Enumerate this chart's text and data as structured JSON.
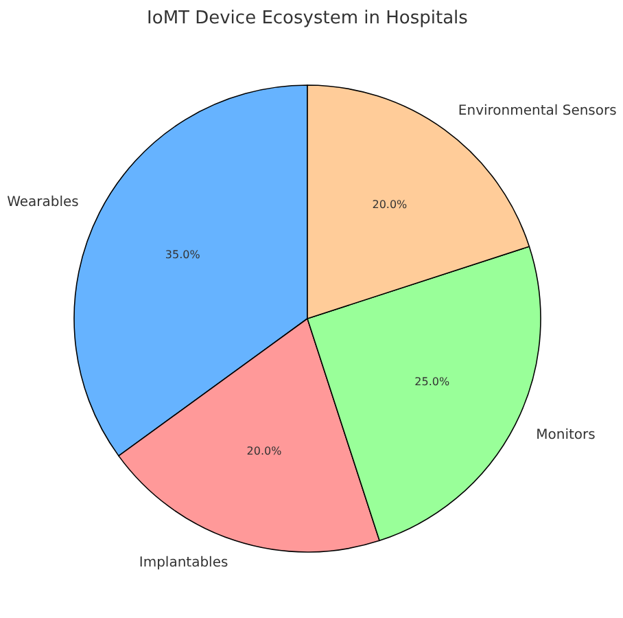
{
  "chart_data": {
    "type": "pie",
    "title": "IoMT Device Ecosystem in Hospitals",
    "categories": [
      "Wearables",
      "Implantables",
      "Monitors",
      "Environmental Sensors"
    ],
    "values": [
      35,
      20,
      25,
      20
    ],
    "colors": [
      "#66b3ff",
      "#ff9999",
      "#99ff99",
      "#ffcc99"
    ],
    "value_labels": [
      "35.0%",
      "20.0%",
      "25.0%",
      "20.0%"
    ]
  }
}
